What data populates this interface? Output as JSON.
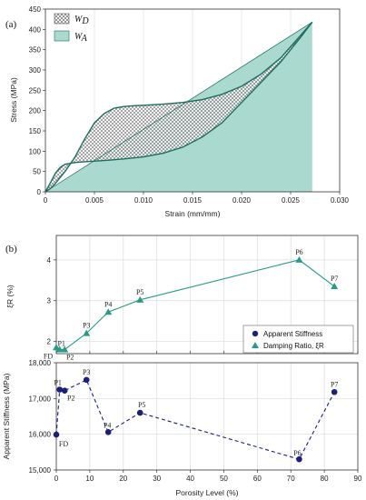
{
  "chart_data": [
    {
      "type": "area",
      "panel_label": "(a)",
      "xlabel": "Strain (mm/mm)",
      "ylabel": "Stress (MPa)",
      "xlim": [
        0,
        0.03
      ],
      "ylim": [
        0,
        450
      ],
      "x_ticks": [
        "0",
        "0.005",
        "0.010",
        "0.015",
        "0.020",
        "0.025",
        "0.030"
      ],
      "y_ticks": [
        "0",
        "50",
        "100",
        "150",
        "200",
        "250",
        "300",
        "350",
        "400",
        "450"
      ],
      "grid": "vertical",
      "legend_position": "top-left",
      "legend": [
        {
          "symbol": "W",
          "subscript": "D",
          "style": "crosshatch"
        },
        {
          "symbol": "W",
          "subscript": "A",
          "style": "solid",
          "color": "#a9d9cf"
        }
      ],
      "colors": {
        "curve": "#1d6e5e",
        "fill": "#a9d9cf",
        "hatch": "#555555"
      },
      "series": [
        {
          "role": "loading",
          "x": [
            0,
            0.0005,
            0.001,
            0.0015,
            0.002,
            0.003,
            0.004,
            0.005,
            0.006,
            0.007,
            0.008,
            0.009,
            0.01,
            0.012,
            0.014,
            0.016,
            0.018,
            0.02,
            0.022,
            0.024,
            0.026,
            0.0272
          ],
          "y": [
            0,
            8,
            20,
            35,
            50,
            85,
            130,
            170,
            193,
            206,
            210,
            212,
            213,
            216,
            220,
            227,
            240,
            260,
            290,
            330,
            385,
            418
          ]
        },
        {
          "role": "unloading",
          "x": [
            0,
            0.0005,
            0.001,
            0.0015,
            0.002,
            0.003,
            0.004,
            0.006,
            0.008,
            0.01,
            0.012,
            0.014,
            0.016,
            0.018,
            0.02,
            0.022,
            0.024,
            0.026,
            0.0272
          ],
          "y": [
            0,
            22,
            45,
            60,
            68,
            72,
            74,
            77,
            81,
            86,
            95,
            110,
            135,
            170,
            220,
            270,
            320,
            380,
            418
          ]
        },
        {
          "role": "linear-reference",
          "x": [
            0,
            0.0272
          ],
          "y": [
            0,
            418
          ]
        }
      ]
    },
    {
      "type": "line",
      "panel_label": "(b)",
      "subplot": "top",
      "ylabel": "ξR (%)",
      "xlim": [
        0,
        90
      ],
      "ylim": [
        1.7,
        4.6
      ],
      "y_ticks": [
        "2",
        "3",
        "4"
      ],
      "series": [
        {
          "name": "Damping Ratio, ξR",
          "marker": "triangle",
          "line": "solid",
          "color": "#2a9a86",
          "labels": [
            "FD",
            "P1",
            "P2",
            "P3",
            "P4",
            "P5",
            "P6",
            "P7"
          ],
          "x": [
            0,
            1,
            2.5,
            9,
            15.5,
            25,
            72.5,
            83
          ],
          "y": [
            1.85,
            1.8,
            1.8,
            2.2,
            2.72,
            3.02,
            4.0,
            3.35
          ]
        }
      ]
    },
    {
      "type": "line",
      "subplot": "bottom",
      "xlabel": "Porosity Level (%)",
      "ylabel": "Apparent Stiffness (MPa)",
      "xlim": [
        0,
        90
      ],
      "ylim": [
        15000,
        18000
      ],
      "x_ticks": [
        "0",
        "10",
        "20",
        "30",
        "40",
        "50",
        "60",
        "70",
        "80",
        "90"
      ],
      "y_ticks": [
        "15,000",
        "16,000",
        "17,000",
        "18,000"
      ],
      "grid": "both",
      "legend_position": "bottom-right of upper subplot",
      "series": [
        {
          "name": "Apparent Stiffness",
          "marker": "circle",
          "line": "dashed",
          "color": "#1a1f7a",
          "labels": [
            "FD",
            "P1",
            "P2",
            "P3",
            "P4",
            "P5",
            "P6",
            "P7"
          ],
          "x": [
            0,
            1,
            2.5,
            9,
            15.5,
            25,
            72.5,
            83
          ],
          "y": [
            15990,
            17250,
            17220,
            17520,
            16060,
            16600,
            15300,
            17180
          ]
        }
      ]
    }
  ]
}
